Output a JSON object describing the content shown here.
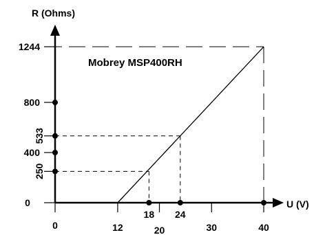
{
  "chart_data": {
    "type": "line",
    "title": "Mobrey MSP400RH",
    "xlabel": "U (V)",
    "ylabel": "R (Ohms)",
    "xlim": [
      0,
      40
    ],
    "ylim": [
      0,
      1244
    ],
    "grid": false,
    "series": [
      {
        "x": [
          12,
          40
        ],
        "y": [
          0,
          1244
        ]
      }
    ],
    "x_ticks": [
      0,
      12,
      20,
      30,
      40
    ],
    "x_tick_labels": [
      "0",
      "12",
      "20",
      "30",
      "40"
    ],
    "x_marked_points": [
      {
        "value": 18,
        "label": "18"
      },
      {
        "value": 24,
        "label": "24"
      }
    ],
    "y_ticks": [
      {
        "value": 0,
        "label": "0"
      },
      {
        "value": 250,
        "label": "250"
      },
      {
        "value": 400,
        "label": "400"
      },
      {
        "value": 533,
        "label": "533"
      },
      {
        "value": 800,
        "label": "800"
      },
      {
        "value": 1244,
        "label": "1244"
      }
    ],
    "reference_points": [
      {
        "x": 18,
        "y": 250
      },
      {
        "x": 24,
        "y": 533
      },
      {
        "x": 40,
        "y": 1244
      }
    ],
    "colors": {
      "line": "#000000",
      "background": "#ffffff"
    }
  }
}
